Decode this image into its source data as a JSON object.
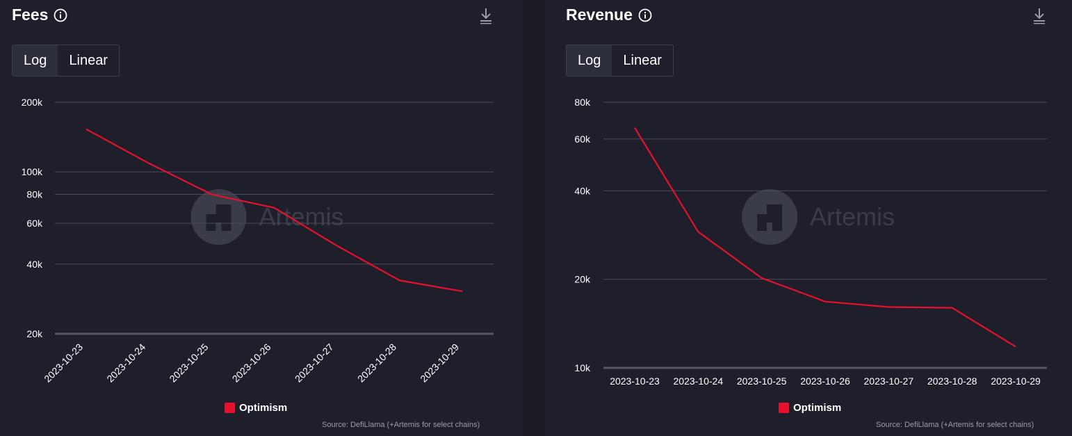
{
  "colors": {
    "series": "#e8112d",
    "grid": "#4a4c5a",
    "axis": "#555766",
    "tick_text": "#ffffff",
    "watermark": "#3a3c48"
  },
  "watermark_text": "Artemis",
  "source_text": "Source: DefiLlama (+Artemis for select chains)",
  "toggle": {
    "log_label": "Log",
    "linear_label": "Linear",
    "active": "log"
  },
  "icons": {
    "info": "info-icon",
    "download": "download-icon"
  },
  "chart_data": [
    {
      "type": "line",
      "title": "Fees",
      "scale": "log",
      "x": [
        "2023-10-23",
        "2023-10-24",
        "2023-10-25",
        "2023-10-26",
        "2023-10-27",
        "2023-10-28",
        "2023-10-29"
      ],
      "series": [
        {
          "name": "Optimism",
          "values": [
            153000,
            109000,
            80000,
            70000,
            48000,
            34000,
            30500
          ]
        }
      ],
      "y_ticks": [
        {
          "value": 20000,
          "label": "20k"
        },
        {
          "value": 40000,
          "label": "40k"
        },
        {
          "value": 60000,
          "label": "60k"
        },
        {
          "value": 80000,
          "label": "80k"
        },
        {
          "value": 100000,
          "label": "100k"
        },
        {
          "value": 200000,
          "label": "200k"
        }
      ],
      "ylim": [
        20000,
        200000
      ],
      "x_label_rotation": -45,
      "legend": "bottom-center",
      "grid": true
    },
    {
      "type": "line",
      "title": "Revenue",
      "scale": "log",
      "x": [
        "2023-10-23",
        "2023-10-24",
        "2023-10-25",
        "2023-10-26",
        "2023-10-27",
        "2023-10-28",
        "2023-10-29"
      ],
      "series": [
        {
          "name": "Optimism",
          "values": [
            65500,
            29000,
            20200,
            16800,
            16100,
            16000,
            11800
          ]
        }
      ],
      "y_ticks": [
        {
          "value": 10000,
          "label": "10k"
        },
        {
          "value": 20000,
          "label": "20k"
        },
        {
          "value": 40000,
          "label": "40k"
        },
        {
          "value": 60000,
          "label": "60k"
        },
        {
          "value": 80000,
          "label": "80k"
        }
      ],
      "ylim": [
        10000,
        80000
      ],
      "x_label_rotation": 0,
      "legend": "bottom-center",
      "grid": true
    }
  ]
}
